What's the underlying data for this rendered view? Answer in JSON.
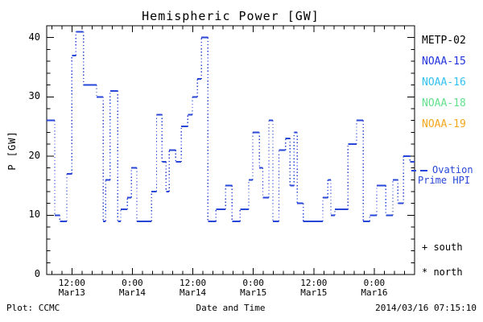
{
  "title": "Hemispheric Power [GW]",
  "footer": {
    "left": "Plot: CCMC",
    "right": "2014/03/16 07:15:10"
  },
  "side_legend": {
    "satellites": [
      {
        "label": "METP-02",
        "color": "#000000"
      },
      {
        "label": "NOAA-15",
        "color": "#2233dd"
      },
      {
        "label": "NOAA-16",
        "color": "#33c1f0"
      },
      {
        "label": "NOAA-18",
        "color": "#63df8e"
      },
      {
        "label": "NOAA-19",
        "color": "#f4a71c"
      }
    ],
    "line_note": {
      "line1": "Ovation",
      "line2": "Prime HPI",
      "color": "#2846d7"
    },
    "markers": [
      {
        "symbol": "+",
        "label": "south"
      },
      {
        "symbol": "*",
        "label": "north"
      }
    ]
  },
  "chart_data": {
    "type": "line",
    "title": "Hemispheric Power [GW]",
    "xlabel": "Date and Time",
    "ylabel": "P [GW]",
    "x_origin": "2014-03-13 07:00",
    "xlim_hours": [
      0,
      73
    ],
    "ylim": [
      0,
      42
    ],
    "y_major_ticks": [
      0,
      10,
      20,
      30,
      40
    ],
    "y_minor_step": 2,
    "x_minor_step_hours": 2,
    "x_major_ticks": [
      {
        "t": 5,
        "time": "12:00",
        "date": "Mar13"
      },
      {
        "t": 17,
        "time": "0:00",
        "date": "Mar14"
      },
      {
        "t": 29,
        "time": "12:00",
        "date": "Mar14"
      },
      {
        "t": 41,
        "time": "0:00",
        "date": "Mar15"
      },
      {
        "t": 53,
        "time": "12:00",
        "date": "Mar15"
      },
      {
        "t": 65,
        "time": "0:00",
        "date": "Mar16"
      }
    ],
    "series": [
      {
        "name": "Ovation Prime HPI",
        "color": "#2846d7",
        "style": "step-hold (solid horizontal holds, dotted vertical transitions)",
        "segments_format": "[t_start_hours, t_end_hours, power_GW]",
        "segments": [
          [
            0,
            1.6,
            26
          ],
          [
            1.6,
            2.6,
            10
          ],
          [
            2.6,
            4.0,
            9
          ],
          [
            4.0,
            5.0,
            17
          ],
          [
            5.0,
            5.8,
            37
          ],
          [
            5.8,
            7.3,
            41
          ],
          [
            7.3,
            9.9,
            32
          ],
          [
            9.9,
            11.2,
            30
          ],
          [
            11.2,
            11.7,
            9
          ],
          [
            11.7,
            12.6,
            16
          ],
          [
            12.6,
            14.1,
            31
          ],
          [
            14.1,
            14.7,
            9
          ],
          [
            14.7,
            16.0,
            11
          ],
          [
            16.0,
            16.8,
            13
          ],
          [
            16.8,
            17.9,
            18
          ],
          [
            17.9,
            20.8,
            9
          ],
          [
            20.8,
            21.8,
            14
          ],
          [
            21.8,
            22.9,
            27
          ],
          [
            22.9,
            23.7,
            19
          ],
          [
            23.7,
            24.3,
            14
          ],
          [
            24.3,
            25.6,
            21
          ],
          [
            25.6,
            26.7,
            19
          ],
          [
            26.7,
            28.0,
            25
          ],
          [
            28.0,
            28.9,
            27
          ],
          [
            28.9,
            29.9,
            30
          ],
          [
            29.9,
            30.7,
            33
          ],
          [
            30.7,
            32.0,
            40
          ],
          [
            32.0,
            33.6,
            9
          ],
          [
            33.6,
            35.5,
            11
          ],
          [
            35.5,
            36.8,
            15
          ],
          [
            36.8,
            38.4,
            9
          ],
          [
            38.4,
            40.1,
            11
          ],
          [
            40.1,
            40.9,
            16
          ],
          [
            40.9,
            42.2,
            24
          ],
          [
            42.2,
            42.9,
            18
          ],
          [
            42.9,
            44.1,
            13
          ],
          [
            44.1,
            44.9,
            26
          ],
          [
            44.9,
            46.1,
            9
          ],
          [
            46.1,
            47.4,
            21
          ],
          [
            47.4,
            48.3,
            23
          ],
          [
            48.3,
            49.1,
            15
          ],
          [
            49.1,
            49.7,
            24
          ],
          [
            49.7,
            50.9,
            12
          ],
          [
            50.9,
            54.8,
            9
          ],
          [
            54.8,
            55.8,
            13
          ],
          [
            55.8,
            56.4,
            16
          ],
          [
            56.4,
            57.2,
            10
          ],
          [
            57.2,
            59.8,
            11
          ],
          [
            59.8,
            61.5,
            22
          ],
          [
            61.5,
            62.8,
            26
          ],
          [
            62.8,
            64.1,
            9
          ],
          [
            64.1,
            65.5,
            10
          ],
          [
            65.5,
            67.3,
            15
          ],
          [
            67.3,
            68.7,
            10
          ],
          [
            68.7,
            69.7,
            16
          ],
          [
            69.7,
            70.8,
            12
          ],
          [
            70.8,
            72.1,
            20
          ],
          [
            72.1,
            73.0,
            19
          ]
        ]
      }
    ],
    "legend_position": "right-outside"
  }
}
